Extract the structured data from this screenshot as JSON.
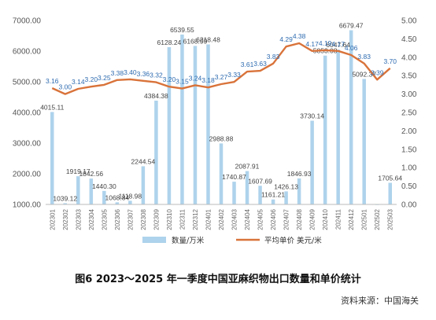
{
  "caption": "图6   2023～2025 年一季度中国亚麻织物出口数量和单价统计",
  "source": "资料来源：中国海关",
  "colors": {
    "bar": "#aed3ec",
    "line": "#d9733a",
    "bar_label": "#444444",
    "line_label": "#2e6bb0"
  },
  "chart_data": {
    "type": "bar",
    "categories": [
      "202301",
      "202302",
      "202303",
      "202304",
      "202305",
      "202306",
      "202307",
      "202308",
      "202309",
      "202310",
      "202311",
      "202312",
      "202401",
      "202402",
      "202403",
      "202404",
      "202405",
      "202406",
      "202407",
      "202408",
      "202409",
      "202410",
      "202411",
      "202412",
      "202501",
      "202502",
      "202503"
    ],
    "series": [
      {
        "name": "数量/万米",
        "type": "bar",
        "axis": "left",
        "values": [
          4015.11,
          1039.12,
          1919.17,
          1842.56,
          1440.3,
          1068.84,
          1118.98,
          2244.54,
          4384.38,
          6128.24,
          6539.55,
          6168.99,
          6218.48,
          2988.88,
          1740.87,
          2087.91,
          1607.69,
          1161.21,
          1426.13,
          1846.93,
          3730.14,
          5853.08,
          6047.64,
          6679.47,
          5092.37,
          1002,
          1705.64
        ],
        "labels": [
          "4015.11",
          "1039.12",
          "1919.17",
          "1842.56",
          "1440.30",
          "1068.84",
          "1118.98",
          "2244.54",
          "4384.38",
          "6128.24",
          "6539.55",
          "6168.99",
          "6218.48",
          "2988.88",
          "1740.87",
          "2087.91",
          "1607.69",
          "1161.21",
          "1426.13",
          "1846.93",
          "3730.14",
          "5853.08",
          "6047.64",
          "6679.47",
          "5092.37",
          "",
          "1705.64"
        ]
      },
      {
        "name": "平均单价 美元/米",
        "type": "line",
        "axis": "right",
        "values": [
          3.16,
          3.0,
          3.14,
          3.2,
          3.25,
          3.38,
          3.4,
          3.36,
          3.32,
          3.2,
          3.15,
          3.24,
          3.18,
          3.27,
          3.33,
          3.61,
          3.63,
          3.83,
          4.29,
          4.38,
          4.17,
          4.19,
          4.17,
          4.06,
          3.83,
          3.39,
          3.7
        ],
        "labels": [
          "3.16",
          "3.00",
          "3.14",
          "3.20",
          "3.25",
          "3.38",
          "3.40",
          "3.36",
          "3.32",
          "3.20",
          "3.15",
          "3.24",
          "3.18",
          "3.27",
          "3.33",
          "3.61",
          "3.63",
          "3.83",
          "4.29",
          "4.38",
          "4.17",
          "4.19",
          "4.17",
          "4.06",
          "3.83",
          "3.39",
          "3.70"
        ]
      }
    ],
    "y_left": {
      "ylim": [
        1000,
        7000
      ],
      "ticks": [
        "1000.00",
        "2000.00",
        "3000.00",
        "4000.00",
        "5000.00",
        "6000.00",
        "7000.00"
      ]
    },
    "y_right": {
      "ylim": [
        0,
        5
      ],
      "ticks": [
        "0.00",
        "0.50",
        "1.00",
        "1.50",
        "2.00",
        "2.50",
        "3.00",
        "3.50",
        "4.00",
        "4.50",
        "5.00"
      ]
    },
    "grid": false,
    "legend": {
      "placement": "bottom",
      "entries": [
        "数量/万米",
        "平均单价 美元/米"
      ]
    }
  }
}
